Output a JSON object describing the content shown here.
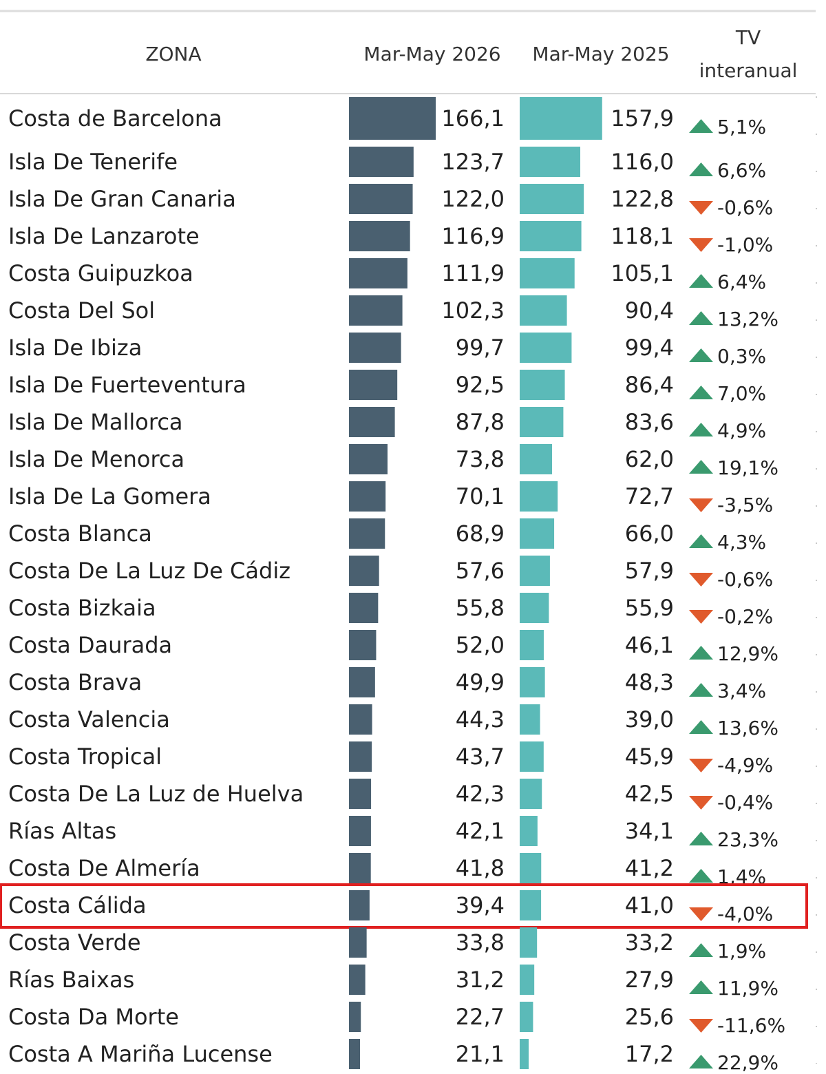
{
  "chart_data": {
    "type": "table",
    "columns": {
      "zone": "ZONA",
      "current": "Mar-May 2026",
      "previous": "Mar-May 2025",
      "change_line1": "TV",
      "change_line2": "interanual"
    },
    "colors": {
      "current_bar": "#4a6070",
      "previous_bar": "#5bbab8",
      "up": "#3a9a6e",
      "down": "#e05a2c",
      "highlight": "#e02020"
    },
    "highlighted_zone": "Costa Cálida",
    "rows": [
      {
        "zone": "Costa de Barcelona",
        "current": 166.1,
        "current_label": "166,1",
        "previous": 157.9,
        "previous_label": "157,9",
        "trend": "up",
        "change_label": "5,1%"
      },
      {
        "zone": "Isla De Tenerife",
        "current": 123.7,
        "current_label": "123,7",
        "previous": 116.0,
        "previous_label": "116,0",
        "trend": "up",
        "change_label": "6,6%"
      },
      {
        "zone": "Isla De Gran Canaria",
        "current": 122.0,
        "current_label": "122,0",
        "previous": 122.8,
        "previous_label": "122,8",
        "trend": "down",
        "change_label": "-0,6%"
      },
      {
        "zone": "Isla De Lanzarote",
        "current": 116.9,
        "current_label": "116,9",
        "previous": 118.1,
        "previous_label": "118,1",
        "trend": "down",
        "change_label": "-1,0%"
      },
      {
        "zone": "Costa Guipuzkoa",
        "current": 111.9,
        "current_label": "111,9",
        "previous": 105.1,
        "previous_label": "105,1",
        "trend": "up",
        "change_label": "6,4%"
      },
      {
        "zone": "Costa Del Sol",
        "current": 102.3,
        "current_label": "102,3",
        "previous": 90.4,
        "previous_label": "90,4",
        "trend": "up",
        "change_label": "13,2%"
      },
      {
        "zone": "Isla De Ibiza",
        "current": 99.7,
        "current_label": "99,7",
        "previous": 99.4,
        "previous_label": "99,4",
        "trend": "up",
        "change_label": "0,3%"
      },
      {
        "zone": "Isla De Fuerteventura",
        "current": 92.5,
        "current_label": "92,5",
        "previous": 86.4,
        "previous_label": "86,4",
        "trend": "up",
        "change_label": "7,0%"
      },
      {
        "zone": "Isla De Mallorca",
        "current": 87.8,
        "current_label": "87,8",
        "previous": 83.6,
        "previous_label": "83,6",
        "trend": "up",
        "change_label": "4,9%"
      },
      {
        "zone": "Isla De Menorca",
        "current": 73.8,
        "current_label": "73,8",
        "previous": 62.0,
        "previous_label": "62,0",
        "trend": "up",
        "change_label": "19,1%"
      },
      {
        "zone": "Isla De La Gomera",
        "current": 70.1,
        "current_label": "70,1",
        "previous": 72.7,
        "previous_label": "72,7",
        "trend": "down",
        "change_label": "-3,5%"
      },
      {
        "zone": "Costa Blanca",
        "current": 68.9,
        "current_label": "68,9",
        "previous": 66.0,
        "previous_label": "66,0",
        "trend": "up",
        "change_label": "4,3%"
      },
      {
        "zone": "Costa De La Luz De Cádiz",
        "current": 57.6,
        "current_label": "57,6",
        "previous": 57.9,
        "previous_label": "57,9",
        "trend": "down",
        "change_label": "-0,6%"
      },
      {
        "zone": "Costa Bizkaia",
        "current": 55.8,
        "current_label": "55,8",
        "previous": 55.9,
        "previous_label": "55,9",
        "trend": "down",
        "change_label": "-0,2%"
      },
      {
        "zone": "Costa Daurada",
        "current": 52.0,
        "current_label": "52,0",
        "previous": 46.1,
        "previous_label": "46,1",
        "trend": "up",
        "change_label": "12,9%"
      },
      {
        "zone": "Costa Brava",
        "current": 49.9,
        "current_label": "49,9",
        "previous": 48.3,
        "previous_label": "48,3",
        "trend": "up",
        "change_label": "3,4%"
      },
      {
        "zone": "Costa Valencia",
        "current": 44.3,
        "current_label": "44,3",
        "previous": 39.0,
        "previous_label": "39,0",
        "trend": "up",
        "change_label": "13,6%"
      },
      {
        "zone": "Costa Tropical",
        "current": 43.7,
        "current_label": "43,7",
        "previous": 45.9,
        "previous_label": "45,9",
        "trend": "down",
        "change_label": "-4,9%"
      },
      {
        "zone": "Costa De La Luz de Huelva",
        "current": 42.3,
        "current_label": "42,3",
        "previous": 42.5,
        "previous_label": "42,5",
        "trend": "down",
        "change_label": "-0,4%"
      },
      {
        "zone": "Rías Altas",
        "current": 42.1,
        "current_label": "42,1",
        "previous": 34.1,
        "previous_label": "34,1",
        "trend": "up",
        "change_label": "23,3%"
      },
      {
        "zone": "Costa De Almería",
        "current": 41.8,
        "current_label": "41,8",
        "previous": 41.2,
        "previous_label": "41,2",
        "trend": "up",
        "change_label": "1,4%"
      },
      {
        "zone": "Costa Cálida",
        "current": 39.4,
        "current_label": "39,4",
        "previous": 41.0,
        "previous_label": "41,0",
        "trend": "down",
        "change_label": "-4,0%"
      },
      {
        "zone": "Costa Verde",
        "current": 33.8,
        "current_label": "33,8",
        "previous": 33.2,
        "previous_label": "33,2",
        "trend": "up",
        "change_label": "1,9%"
      },
      {
        "zone": "Rías Baixas",
        "current": 31.2,
        "current_label": "31,2",
        "previous": 27.9,
        "previous_label": "27,9",
        "trend": "up",
        "change_label": "11,9%"
      },
      {
        "zone": "Costa Da Morte",
        "current": 22.7,
        "current_label": "22,7",
        "previous": 25.6,
        "previous_label": "25,6",
        "trend": "down",
        "change_label": "-11,6%"
      },
      {
        "zone": "Costa A Mariña Lucense",
        "current": 21.1,
        "current_label": "21,1",
        "previous": 17.2,
        "previous_label": "17,2",
        "trend": "up",
        "change_label": "22,9%"
      }
    ]
  }
}
